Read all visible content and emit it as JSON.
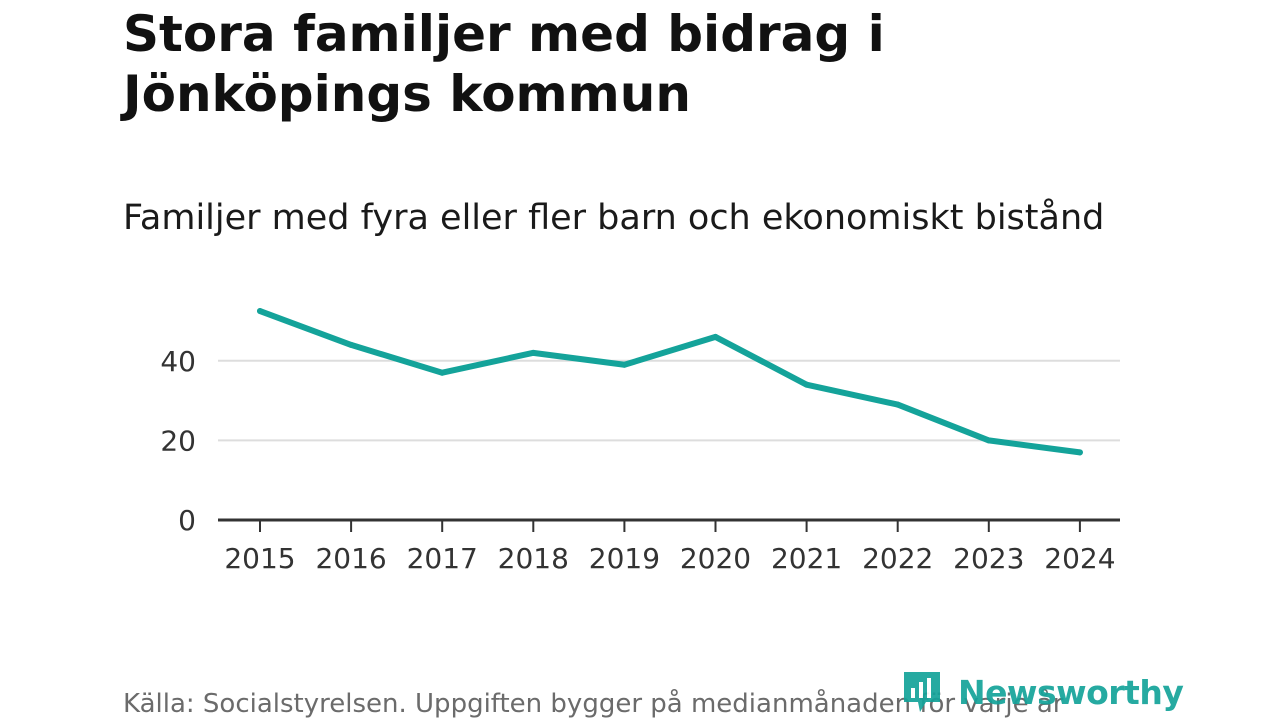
{
  "header": {
    "title": "Stora familjer med bidrag i Jönköpings kommun",
    "subtitle": "Familjer med fyra eller fler barn och ekonomiskt bistånd"
  },
  "footer": {
    "source": "Källa: Socialstyrelsen. Uppgiften bygger på medianmånaden för varje år",
    "brand": "Newsworthy"
  },
  "colors": {
    "line": "#14a39a",
    "grid": "#dddddd",
    "axis": "#333333",
    "brand": "#14a39a"
  },
  "chart_data": {
    "type": "line",
    "title": "Stora familjer med bidrag i Jönköpings kommun",
    "subtitle": "Familjer med fyra eller fler barn och ekonomiskt bistånd",
    "xlabel": "",
    "ylabel": "",
    "categories": [
      "2015",
      "2016",
      "2017",
      "2018",
      "2019",
      "2020",
      "2021",
      "2022",
      "2023",
      "2024"
    ],
    "series": [
      {
        "name": "Familjer med fyra eller fler barn och ekonomiskt bistånd",
        "values": [
          52.5,
          44,
          37,
          42,
          39,
          46,
          34,
          29,
          20,
          17
        ]
      }
    ],
    "ylim": [
      0,
      55
    ],
    "yticks": [
      0,
      20,
      40
    ],
    "grid": true,
    "legend": "none"
  }
}
